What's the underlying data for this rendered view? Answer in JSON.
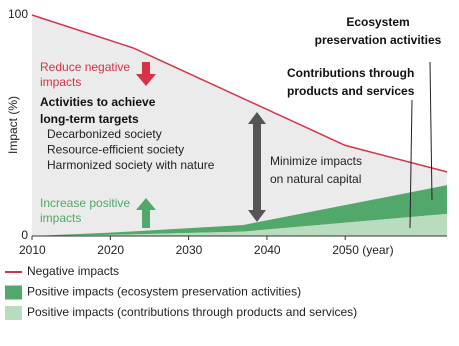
{
  "chart_data": {
    "type": "area",
    "y_label": "Impact (%)",
    "xlim": [
      2010,
      2063
    ],
    "ylim": [
      0,
      100
    ],
    "yticks": [
      0,
      100
    ],
    "xticks": [
      2010,
      2020,
      2030,
      2040,
      {
        "value": 2050,
        "label": "2050 (year)"
      }
    ],
    "stacked": true,
    "series": [
      {
        "name": "Negative impacts",
        "color": "#d6324a",
        "fill": "#ebebeb",
        "x": [
          2010,
          2023,
          2050,
          2063
        ],
        "values": [
          100,
          85,
          41,
          29
        ]
      },
      {
        "name": "Positive impacts (ecosystem preservation activities)",
        "color": "#52a86a",
        "x": [
          2010,
          2020,
          2037,
          2063
        ],
        "values": [
          0,
          1,
          3,
          13
        ]
      },
      {
        "name": "Positive impacts (contributions through products and services)",
        "color": "#b9dcbf",
        "x": [
          2010,
          2020,
          2037,
          2063
        ],
        "values": [
          0,
          0.5,
          2,
          10
        ]
      }
    ],
    "annotations": [
      {
        "lines": [
          "Reduce negative",
          "impacts"
        ],
        "color": "#d6324a"
      },
      {
        "lines": [
          "Activities to achieve",
          "long-term targets"
        ],
        "color": "#111111"
      },
      {
        "lines": [
          "Decarbonized society",
          "Resource-efficient society",
          "Harmonized society with nature"
        ],
        "color": "#222222"
      },
      {
        "lines": [
          "Increase positive",
          "impacts"
        ],
        "color": "#52a86a"
      },
      {
        "lines": [
          "Minimize impacts",
          "on natural capital"
        ],
        "color": "#222222"
      },
      {
        "lines": [
          "Ecosystem",
          "preservation activities"
        ],
        "color": "#111111"
      },
      {
        "lines": [
          "Contributions through",
          "products and services"
        ],
        "color": "#111111"
      }
    ]
  }
}
